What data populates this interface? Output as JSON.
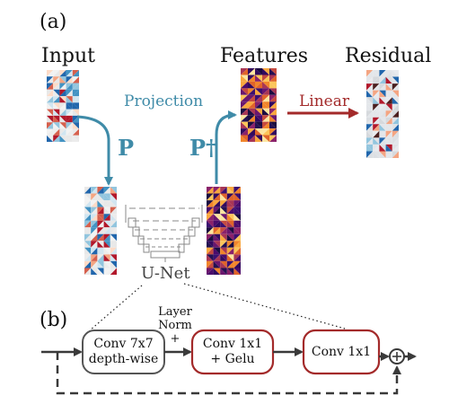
{
  "panel_a": {
    "label": "(a)",
    "input_title": "Input",
    "features_title": "Features",
    "residual_title": "Residual",
    "projection_label": "Projection",
    "p_label": "P",
    "p_dagger_label": "P†",
    "linear_label": "Linear",
    "unet_label": "U-Net"
  },
  "panel_b": {
    "label": "(b)",
    "block1": [
      "Conv 7x7",
      "depth-wise"
    ],
    "layer_norm": [
      "Layer",
      "Norm",
      "+"
    ],
    "block2": [
      "Conv 1x1",
      "+ Gelu"
    ],
    "block3": "Conv 1x1",
    "plus_symbol": "+"
  },
  "colors": {
    "projection_blue": "#3f8ba8",
    "linear_red": "#a32a2a",
    "dark_gray": "#3a3a3a"
  }
}
